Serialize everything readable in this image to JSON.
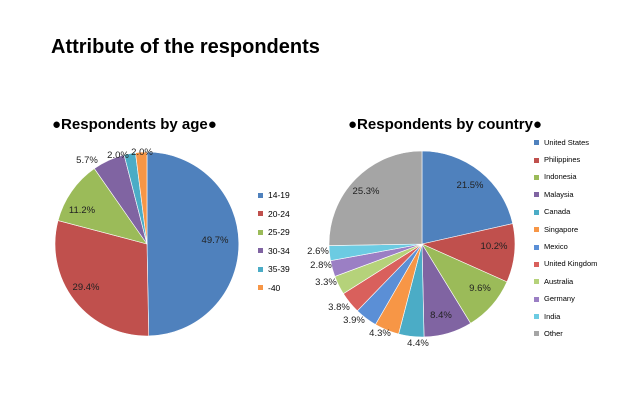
{
  "page_title": "Attribute of the respondents",
  "chart_data": [
    {
      "type": "pie",
      "title": "●Respondents by age●",
      "legend_position": "right",
      "categories": [
        "14-19",
        "20-24",
        "25-29",
        "30-34",
        "35-39",
        "-40"
      ],
      "values": [
        49.7,
        29.4,
        11.2,
        5.7,
        2.0,
        2.0
      ],
      "labels": [
        "49.7%",
        "29.4%",
        "11.2%",
        "5.7%",
        "2.0%",
        "2.0%"
      ],
      "colors": [
        "#4f81bd",
        "#c0504d",
        "#9bbb59",
        "#8064a2",
        "#4bacc6",
        "#f79646"
      ]
    },
    {
      "type": "pie",
      "title": "●Respondents by country●",
      "legend_position": "right",
      "categories": [
        "United States",
        "Philippines",
        "Indonesia",
        "Malaysia",
        "Canada",
        "Singapore",
        "Mexico",
        "United Kingdom",
        "Australia",
        "Germany",
        "India",
        "Other"
      ],
      "values": [
        21.5,
        10.2,
        9.6,
        8.4,
        4.4,
        4.3,
        3.9,
        3.8,
        3.3,
        2.8,
        2.6,
        25.3
      ],
      "labels": [
        "21.5%",
        "10.2%",
        "9.6%",
        "8.4%",
        "4.4%",
        "4.3%",
        "3.9%",
        "3.8%",
        "3.3%",
        "2.8%",
        "2.6%",
        "25.3%"
      ],
      "colors": [
        "#4f81bd",
        "#c0504d",
        "#9bbb59",
        "#8064a2",
        "#4bacc6",
        "#f79646",
        "#5b8fd6",
        "#d9605c",
        "#b5d27a",
        "#9b7fc4",
        "#6ccbe2",
        "#a5a5a5"
      ]
    }
  ]
}
